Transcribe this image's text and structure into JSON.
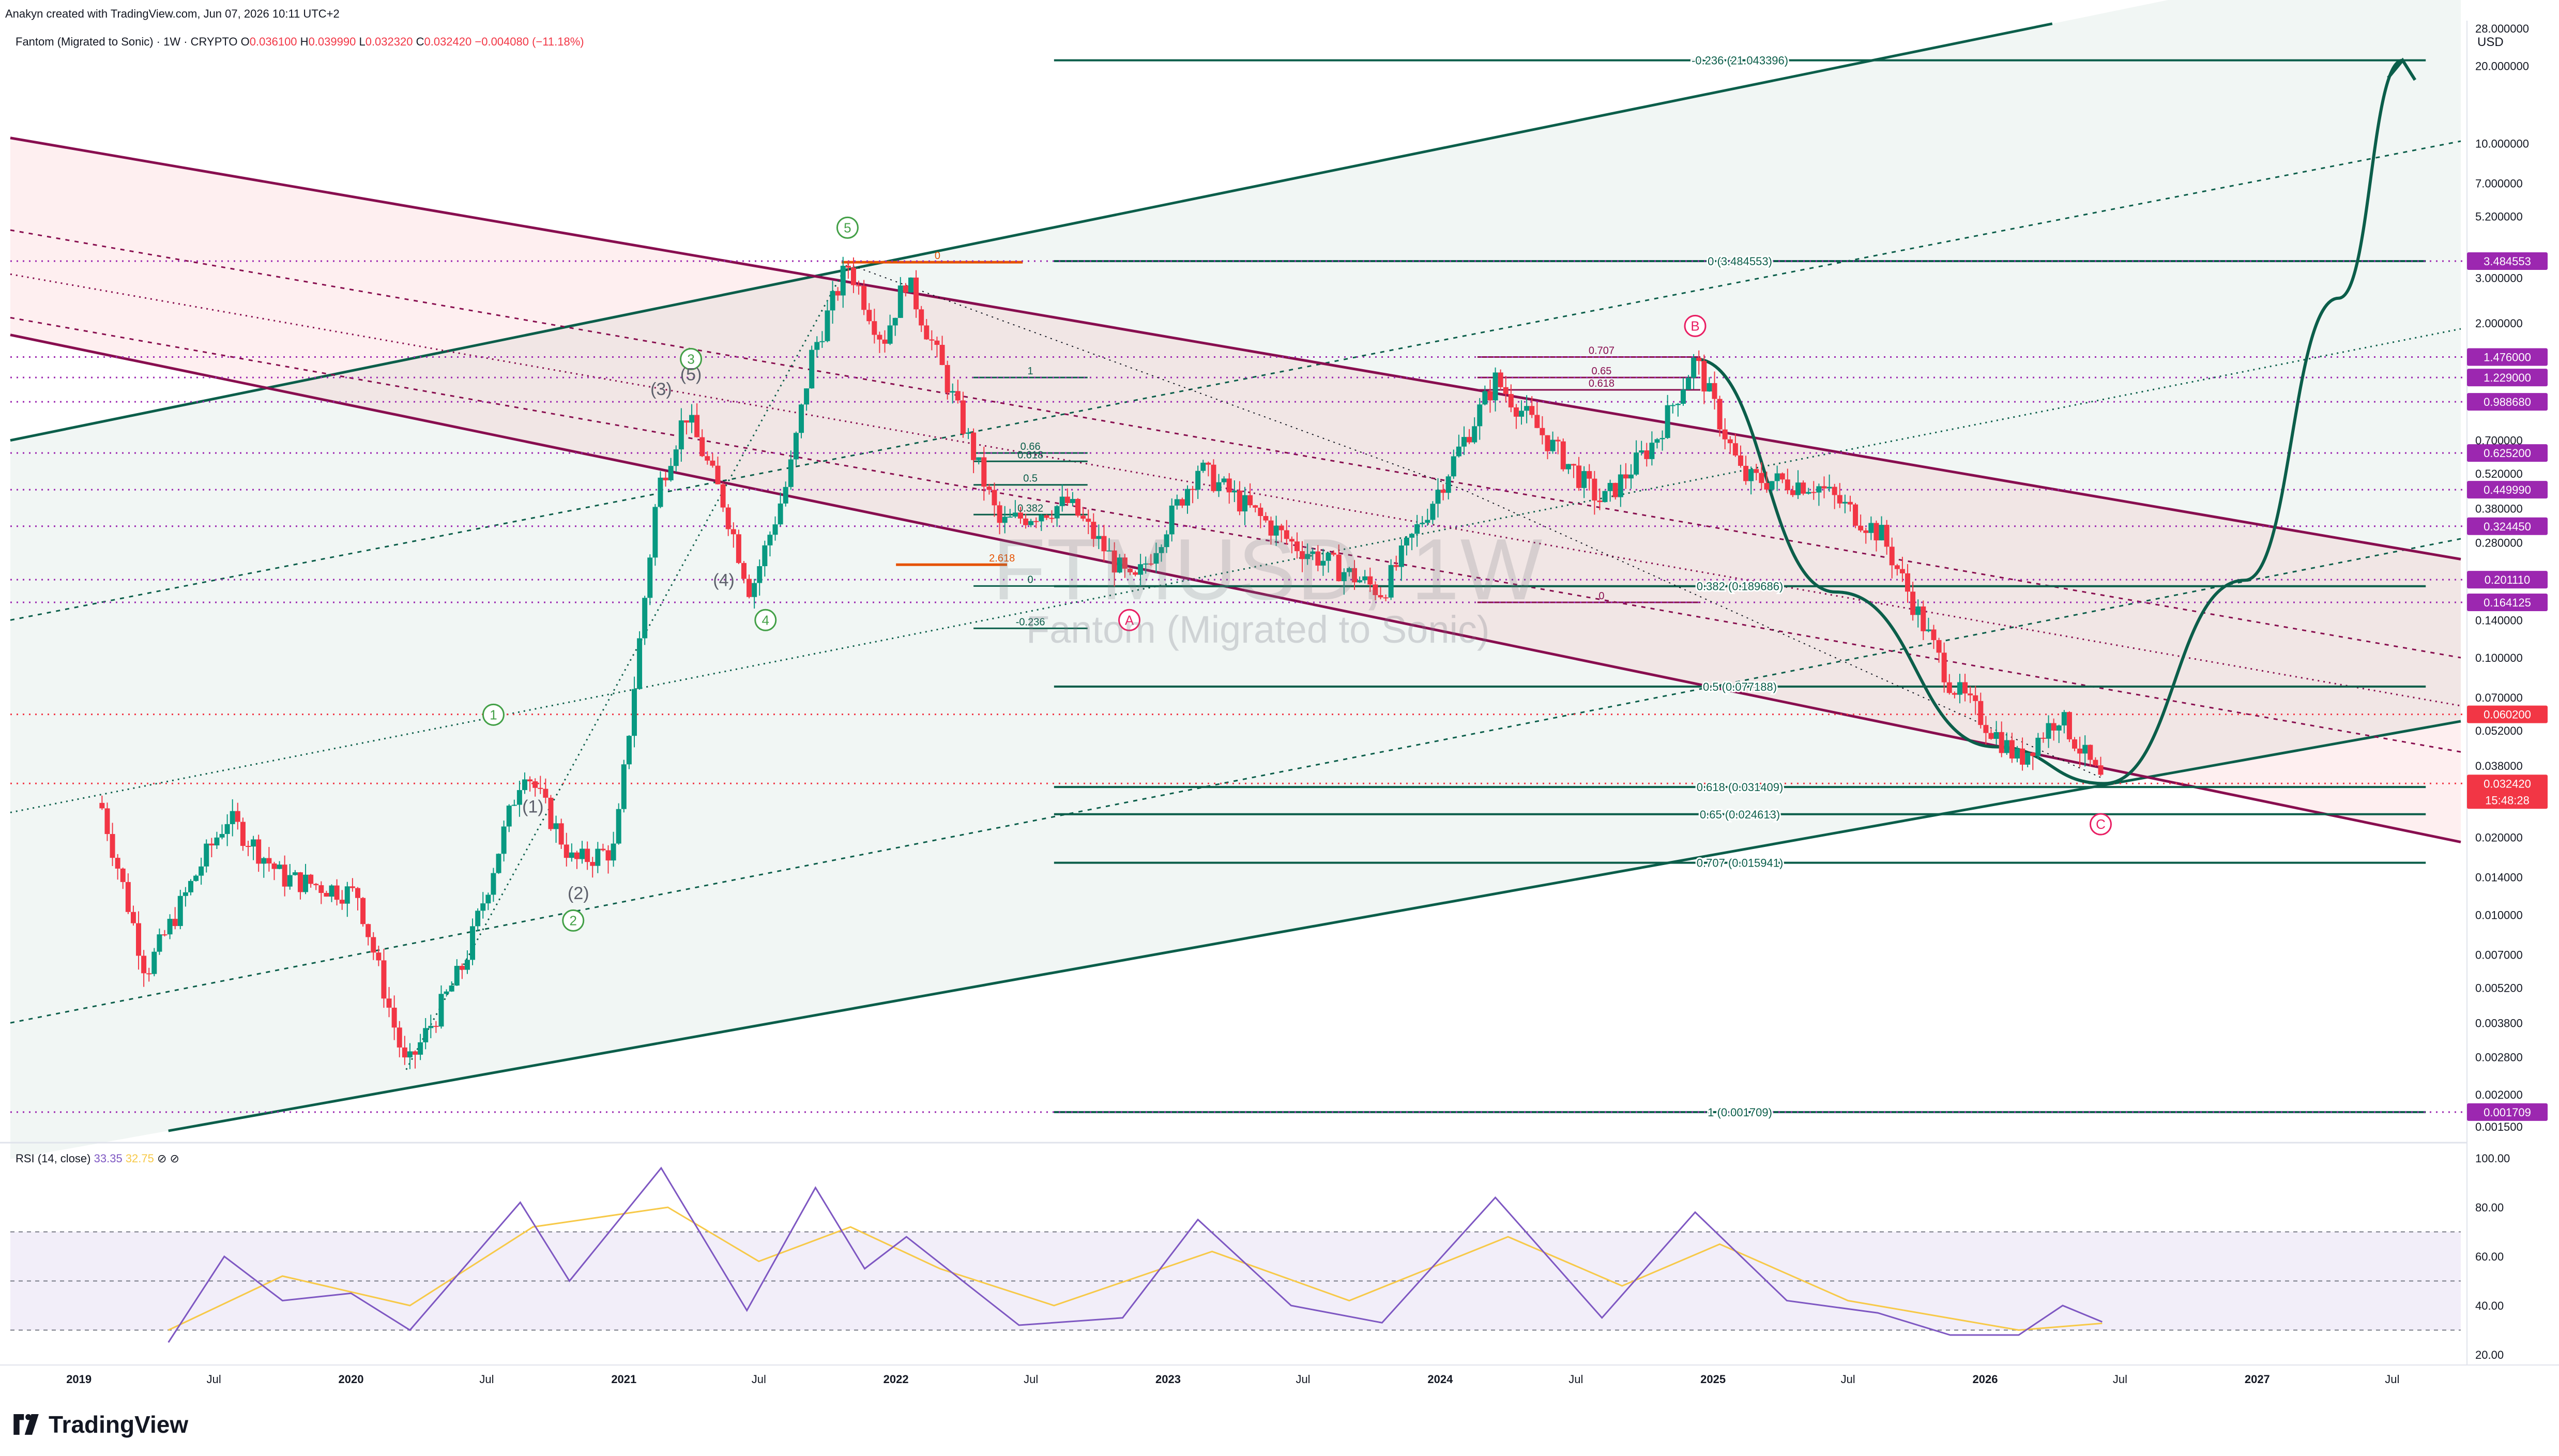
{
  "header": {
    "created_by": "Anakyn created with TradingView.com, Jun 07, 2026 10:11 UTC+2"
  },
  "symbol": {
    "name": "Fantom (Migrated to Sonic) · 1W · CRYPTO",
    "open_label": "O",
    "open": "0.036100",
    "high_label": "H",
    "high": "0.039990",
    "low_label": "L",
    "low": "0.032320",
    "close_label": "C",
    "close": "0.032420",
    "change": "−0.004080 (−11.18%)"
  },
  "watermark": {
    "ticker": "FTMUSD, 1W",
    "description": "Fantom (Migrated to Sonic)"
  },
  "currency": "USD",
  "rsi": {
    "label": "RSI (14, close)",
    "value": "33.35",
    "ma_value": "32.75",
    "icons": "⊘ ⊘"
  },
  "brand": "TradingView",
  "colors": {
    "up": "#089981",
    "down": "#f23645",
    "channel_red": "#880e4f",
    "channel_green": "#0b5e4a",
    "fib_orange": "#e65100",
    "rsi_line": "#7e57c2",
    "rsi_ma": "#f7c948",
    "purple_label": "#9c27b0"
  },
  "chart_data": {
    "type": "candlestick",
    "title": "Fantom (Migrated to Sonic) · 1W · CRYPTO",
    "scale": "log",
    "ylim": [
      0.0013,
      30
    ],
    "x_range": [
      "2018-10-01",
      "2027-10-01"
    ],
    "x_ticks": [
      "2019",
      "Jul",
      "2020",
      "Jul",
      "2021",
      "Jul",
      "2022",
      "Jul",
      "2023",
      "Jul",
      "2024",
      "Jul",
      "2025",
      "Jul",
      "2026",
      "Jul",
      "2027",
      "Jul"
    ],
    "y_ticks": [
      "28.000000",
      "20.000000",
      "10.000000",
      "7.000000",
      "5.200000",
      "3.000000",
      "2.000000",
      "0.700000",
      "0.520000",
      "0.380000",
      "0.280000",
      "0.140000",
      "0.100000",
      "0.070000",
      "0.052000",
      "0.038000",
      "0.020000",
      "0.014000",
      "0.010000",
      "0.007000",
      "0.005200",
      "0.003800",
      "0.002800",
      "0.002000",
      "0.001500"
    ],
    "price_labels": [
      {
        "value": "3.484553",
        "kind": "purple"
      },
      {
        "value": "1.476000",
        "kind": "purple"
      },
      {
        "value": "1.229000",
        "kind": "purple"
      },
      {
        "value": "0.988680",
        "kind": "purple"
      },
      {
        "value": "0.625200",
        "kind": "purple"
      },
      {
        "value": "0.449990",
        "kind": "purple"
      },
      {
        "value": "0.324450",
        "kind": "purple"
      },
      {
        "value": "0.201110",
        "kind": "purple"
      },
      {
        "value": "0.164125",
        "kind": "purple"
      },
      {
        "value": "0.060200",
        "kind": "red"
      },
      {
        "value": "0.032420",
        "kind": "current",
        "countdown": "15:48:28"
      },
      {
        "value": "0.001709",
        "kind": "purple"
      }
    ],
    "price_path": [
      {
        "t": "2019-02-01",
        "p": 0.026
      },
      {
        "t": "2019-04-01",
        "p": 0.006
      },
      {
        "t": "2019-06-20",
        "p": 0.017
      },
      {
        "t": "2019-07-20",
        "p": 0.024
      },
      {
        "t": "2019-10-01",
        "p": 0.014
      },
      {
        "t": "2020-01-10",
        "p": 0.012
      },
      {
        "t": "2020-03-15",
        "p": 0.0025
      },
      {
        "t": "2020-06-01",
        "p": 0.0065
      },
      {
        "t": "2020-08-20",
        "p": 0.038
      },
      {
        "t": "2020-10-25",
        "p": 0.016
      },
      {
        "t": "2020-12-20",
        "p": 0.018
      },
      {
        "t": "2021-02-15",
        "p": 0.45
      },
      {
        "t": "2021-03-25",
        "p": 0.9
      },
      {
        "t": "2021-05-15",
        "p": 0.4
      },
      {
        "t": "2021-06-20",
        "p": 0.18
      },
      {
        "t": "2021-08-10",
        "p": 0.5
      },
      {
        "t": "2021-09-10",
        "p": 1.5
      },
      {
        "t": "2021-10-28",
        "p": 3.4
      },
      {
        "t": "2021-12-15",
        "p": 1.7
      },
      {
        "t": "2022-01-15",
        "p": 3.0
      },
      {
        "t": "2022-03-01",
        "p": 1.4
      },
      {
        "t": "2022-05-20",
        "p": 0.33
      },
      {
        "t": "2022-08-20",
        "p": 0.4
      },
      {
        "t": "2022-11-15",
        "p": 0.19
      },
      {
        "t": "2023-02-10",
        "p": 0.55
      },
      {
        "t": "2023-06-15",
        "p": 0.28
      },
      {
        "t": "2023-10-15",
        "p": 0.18
      },
      {
        "t": "2023-12-20",
        "p": 0.4
      },
      {
        "t": "2024-03-15",
        "p": 1.2
      },
      {
        "t": "2024-08-05",
        "p": 0.4
      },
      {
        "t": "2024-10-15",
        "p": 0.7
      },
      {
        "t": "2024-12-08",
        "p": 1.45
      },
      {
        "t": "2025-02-10",
        "p": 0.5
      },
      {
        "t": "2025-05-20",
        "p": 0.47
      },
      {
        "t": "2025-08-15",
        "p": 0.3
      },
      {
        "t": "2025-11-15",
        "p": 0.08
      },
      {
        "t": "2026-02-15",
        "p": 0.04
      },
      {
        "t": "2026-04-10",
        "p": 0.06
      },
      {
        "t": "2026-06-07",
        "p": 0.0324
      }
    ],
    "forecast_curve": [
      {
        "t": "2024-12-08",
        "p": 1.45
      },
      {
        "t": "2025-06-15",
        "p": 0.18
      },
      {
        "t": "2026-01-15",
        "p": 0.045
      },
      {
        "t": "2026-06-10",
        "p": 0.0324
      },
      {
        "t": "2026-12-15",
        "p": 0.2
      },
      {
        "t": "2027-04-20",
        "p": 2.5
      },
      {
        "t": "2027-07-15",
        "p": 21.04
      }
    ],
    "fib_extension": [
      {
        "level": "-0.236",
        "price": "21.043396",
        "p": 21.04
      },
      {
        "level": "0",
        "price": "3.484553",
        "p": 3.484553
      },
      {
        "level": "0.382",
        "price": "0.189686",
        "p": 0.189686
      },
      {
        "level": "0.5",
        "price": "0.077188",
        "p": 0.077188
      },
      {
        "level": "0.618",
        "price": "0.031409",
        "p": 0.031409
      },
      {
        "level": "0.65",
        "price": "0.024613",
        "p": 0.024613
      },
      {
        "level": "0.707",
        "price": "0.015941",
        "p": 0.015941
      },
      {
        "level": "1",
        "price": "0.001709",
        "p": 0.001709
      }
    ],
    "fib_retracement_2022": [
      {
        "level": "1",
        "p": 1.229
      },
      {
        "level": "0.66",
        "p": 0.625
      },
      {
        "level": "0.618",
        "p": 0.58
      },
      {
        "level": "0.5",
        "p": 0.47
      },
      {
        "level": "0.382",
        "p": 0.36
      },
      {
        "level": "0",
        "p": 0.19
      },
      {
        "level": "-0.236",
        "p": 0.13
      }
    ],
    "fib_retracement_2024": [
      {
        "level": "0.707",
        "p": 1.476
      },
      {
        "level": "0.65",
        "p": 1.229
      },
      {
        "level": "0.618",
        "p": 1.1
      },
      {
        "level": "0",
        "p": 0.164125
      }
    ],
    "orange_levels": [
      {
        "level": "0",
        "p": 3.45
      },
      {
        "level": "2.618",
        "p": 0.23
      }
    ],
    "wave_labels_green": [
      {
        "label": "1",
        "t": "2020-07-10",
        "p": 0.06
      },
      {
        "label": "2",
        "t": "2020-10-25",
        "p": 0.0095
      },
      {
        "label": "3",
        "t": "2021-04-01",
        "p": 1.45
      },
      {
        "label": "4",
        "t": "2021-07-10",
        "p": 0.14
      },
      {
        "label": "5",
        "t": "2021-10-28",
        "p": 4.7
      }
    ],
    "wave_labels_gray": [
      {
        "label": "(1)",
        "t": "2020-09-01",
        "p": 0.025
      },
      {
        "label": "(2)",
        "t": "2020-11-01",
        "p": 0.0115
      },
      {
        "label": "(3)",
        "t": "2021-02-20",
        "p": 1.05
      },
      {
        "label": "(4)",
        "t": "2021-05-15",
        "p": 0.19
      },
      {
        "label": "(5)",
        "t": "2021-04-01",
        "p": 1.2
      }
    ],
    "wave_labels_red": [
      {
        "label": "A",
        "t": "2022-11-10",
        "p": 0.14
      },
      {
        "label": "B",
        "t": "2024-12-08",
        "p": 1.95
      },
      {
        "label": "C",
        "t": "2026-06-05",
        "p": 0.0225
      }
    ],
    "rsi": {
      "ylim": [
        20,
        100
      ],
      "ticks": [
        "100.00",
        "80.00",
        "60.00",
        "40.00",
        "20.00"
      ],
      "band": [
        30,
        70
      ],
      "rsi_path": [
        {
          "t": "2019-05-01",
          "v": 25
        },
        {
          "t": "2019-07-15",
          "v": 60
        },
        {
          "t": "2019-10-01",
          "v": 42
        },
        {
          "t": "2020-01-01",
          "v": 45
        },
        {
          "t": "2020-03-20",
          "v": 30
        },
        {
          "t": "2020-08-15",
          "v": 82
        },
        {
          "t": "2020-10-20",
          "v": 50
        },
        {
          "t": "2021-02-20",
          "v": 96
        },
        {
          "t": "2021-06-15",
          "v": 38
        },
        {
          "t": "2021-09-15",
          "v": 88
        },
        {
          "t": "2021-11-20",
          "v": 55
        },
        {
          "t": "2022-01-15",
          "v": 68
        },
        {
          "t": "2022-06-15",
          "v": 32
        },
        {
          "t": "2022-11-01",
          "v": 35
        },
        {
          "t": "2023-02-10",
          "v": 75
        },
        {
          "t": "2023-06-15",
          "v": 40
        },
        {
          "t": "2023-10-15",
          "v": 33
        },
        {
          "t": "2024-03-15",
          "v": 84
        },
        {
          "t": "2024-08-05",
          "v": 35
        },
        {
          "t": "2024-12-08",
          "v": 78
        },
        {
          "t": "2025-04-10",
          "v": 42
        },
        {
          "t": "2025-08-10",
          "v": 37
        },
        {
          "t": "2025-11-15",
          "v": 28
        },
        {
          "t": "2026-02-15",
          "v": 28
        },
        {
          "t": "2026-04-15",
          "v": 40
        },
        {
          "t": "2026-06-07",
          "v": 33.35
        }
      ],
      "ma_path": [
        {
          "t": "2019-05-01",
          "v": 30
        },
        {
          "t": "2019-10-01",
          "v": 52
        },
        {
          "t": "2020-03-20",
          "v": 40
        },
        {
          "t": "2020-09-01",
          "v": 72
        },
        {
          "t": "2021-03-01",
          "v": 80
        },
        {
          "t": "2021-07-01",
          "v": 58
        },
        {
          "t": "2021-11-01",
          "v": 72
        },
        {
          "t": "2022-03-01",
          "v": 55
        },
        {
          "t": "2022-08-01",
          "v": 40
        },
        {
          "t": "2023-03-01",
          "v": 62
        },
        {
          "t": "2023-09-01",
          "v": 42
        },
        {
          "t": "2024-04-01",
          "v": 68
        },
        {
          "t": "2024-09-01",
          "v": 48
        },
        {
          "t": "2025-01-10",
          "v": 65
        },
        {
          "t": "2025-07-01",
          "v": 42
        },
        {
          "t": "2026-02-15",
          "v": 30
        },
        {
          "t": "2026-06-07",
          "v": 32.75
        }
      ]
    }
  }
}
